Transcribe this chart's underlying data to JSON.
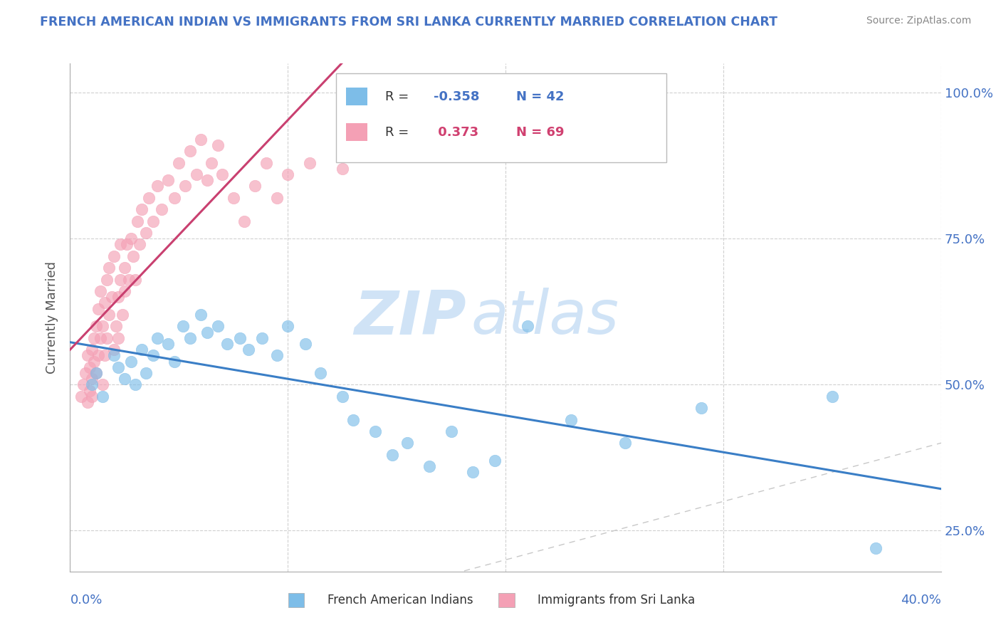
{
  "title": "FRENCH AMERICAN INDIAN VS IMMIGRANTS FROM SRI LANKA CURRENTLY MARRIED CORRELATION CHART",
  "source": "Source: ZipAtlas.com",
  "ylabel": "Currently Married",
  "xlim": [
    0.0,
    0.4
  ],
  "ylim": [
    0.18,
    1.05
  ],
  "ytick_vals": [
    0.25,
    0.5,
    0.75,
    1.0
  ],
  "ytick_labels": [
    "25.0%",
    "50.0%",
    "75.0%",
    "100.0%"
  ],
  "legend_label1": "French American Indians",
  "legend_label2": "Immigrants from Sri Lanka",
  "color_blue": "#7dbde8",
  "color_pink": "#f4a0b5",
  "trendline_blue_color": "#3a7ec6",
  "trendline_pink_color": "#c94070",
  "blue_x": [
    0.01,
    0.012,
    0.015,
    0.02,
    0.022,
    0.025,
    0.028,
    0.03,
    0.033,
    0.035,
    0.038,
    0.04,
    0.045,
    0.048,
    0.052,
    0.055,
    0.06,
    0.063,
    0.068,
    0.072,
    0.078,
    0.082,
    0.088,
    0.095,
    0.1,
    0.108,
    0.115,
    0.125,
    0.13,
    0.14,
    0.148,
    0.155,
    0.165,
    0.175,
    0.185,
    0.195,
    0.21,
    0.23,
    0.255,
    0.29,
    0.35,
    0.37
  ],
  "blue_y": [
    0.5,
    0.52,
    0.48,
    0.55,
    0.53,
    0.51,
    0.54,
    0.5,
    0.56,
    0.52,
    0.55,
    0.58,
    0.57,
    0.54,
    0.6,
    0.58,
    0.62,
    0.59,
    0.6,
    0.57,
    0.58,
    0.56,
    0.58,
    0.55,
    0.6,
    0.57,
    0.52,
    0.48,
    0.44,
    0.42,
    0.38,
    0.4,
    0.36,
    0.42,
    0.35,
    0.37,
    0.6,
    0.44,
    0.4,
    0.46,
    0.48,
    0.22
  ],
  "pink_x": [
    0.005,
    0.006,
    0.007,
    0.008,
    0.008,
    0.009,
    0.009,
    0.01,
    0.01,
    0.01,
    0.011,
    0.011,
    0.012,
    0.012,
    0.013,
    0.013,
    0.014,
    0.014,
    0.015,
    0.015,
    0.016,
    0.016,
    0.017,
    0.017,
    0.018,
    0.018,
    0.019,
    0.02,
    0.02,
    0.021,
    0.022,
    0.022,
    0.023,
    0.023,
    0.024,
    0.025,
    0.025,
    0.026,
    0.027,
    0.028,
    0.029,
    0.03,
    0.031,
    0.032,
    0.033,
    0.035,
    0.036,
    0.038,
    0.04,
    0.042,
    0.045,
    0.048,
    0.05,
    0.053,
    0.055,
    0.058,
    0.06,
    0.063,
    0.065,
    0.068,
    0.07,
    0.075,
    0.08,
    0.085,
    0.09,
    0.095,
    0.1,
    0.11,
    0.125
  ],
  "pink_y": [
    0.48,
    0.5,
    0.52,
    0.47,
    0.55,
    0.49,
    0.53,
    0.51,
    0.56,
    0.48,
    0.54,
    0.58,
    0.52,
    0.6,
    0.55,
    0.63,
    0.58,
    0.66,
    0.6,
    0.5,
    0.64,
    0.55,
    0.68,
    0.58,
    0.62,
    0.7,
    0.65,
    0.56,
    0.72,
    0.6,
    0.65,
    0.58,
    0.68,
    0.74,
    0.62,
    0.66,
    0.7,
    0.74,
    0.68,
    0.75,
    0.72,
    0.68,
    0.78,
    0.74,
    0.8,
    0.76,
    0.82,
    0.78,
    0.84,
    0.8,
    0.85,
    0.82,
    0.88,
    0.84,
    0.9,
    0.86,
    0.92,
    0.85,
    0.88,
    0.91,
    0.86,
    0.82,
    0.78,
    0.84,
    0.88,
    0.82,
    0.86,
    0.88,
    0.87
  ],
  "watermark_zip": "ZIP",
  "watermark_atlas": "atlas",
  "background_color": "#ffffff",
  "grid_color": "#d0d0d0"
}
